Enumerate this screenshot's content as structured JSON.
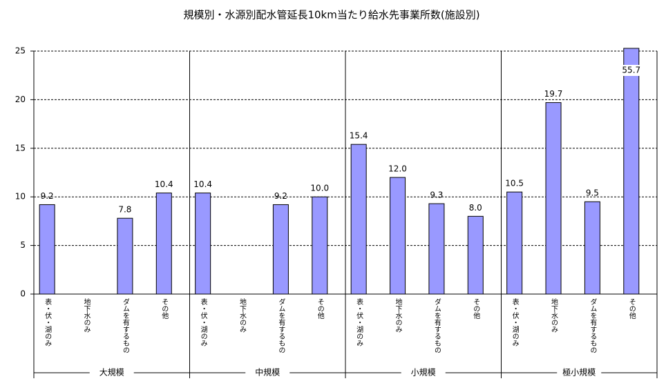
{
  "chart_data": {
    "type": "bar",
    "title": "規模別・水源別配水管延長10km当たり給水先事業所数(施設別)",
    "groups": [
      "大規模",
      "中規模",
      "小規模",
      "極小規模"
    ],
    "categories": [
      "表・伏・湖のみ",
      "地下水のみ",
      "ダムを有するもの",
      "その他",
      "表・伏・湖のみ",
      "地下水のみ",
      "ダムを有するもの",
      "その他",
      "表・伏・湖のみ",
      "地下水のみ",
      "ダムを有するもの",
      "その他",
      "表・伏・湖のみ",
      "地下水のみ",
      "ダムを有するもの",
      "その他"
    ],
    "values": [
      9.2,
      null,
      7.8,
      10.4,
      10.4,
      null,
      9.2,
      10.0,
      15.4,
      12.0,
      9.3,
      8.0,
      10.5,
      19.7,
      9.5,
      55.7
    ],
    "value_labels": [
      "9.2",
      null,
      "7.8",
      "10.4",
      "10.4",
      null,
      "9.2",
      "10.0",
      "15.4",
      "12.0",
      "9.3",
      "8.0",
      "10.5",
      "19.7",
      "9.5",
      "55.7"
    ],
    "color": "#9999ff",
    "ylim": [
      0,
      25
    ],
    "yticks": [
      0,
      5,
      10,
      15,
      20,
      25
    ],
    "grid": true
  }
}
